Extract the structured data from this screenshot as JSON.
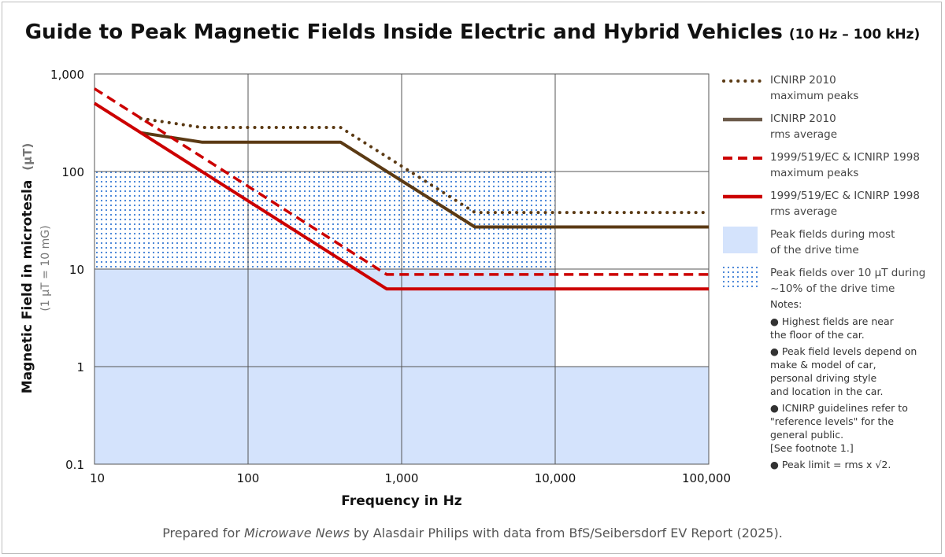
{
  "title": "Guide to Peak Magnetic Fields Inside Electric and Hybrid Vehicles",
  "title_range": "(10 Hz – 100 kHz)",
  "footer": {
    "pre": "Prepared for ",
    "publication": "Microwave News",
    "post": " by Alasdair Philips with data from BfS/Seibersdorf EV Report (2025)."
  },
  "legend": [
    {
      "line1": "ICNIRP 2010",
      "line2": "maximum peaks"
    },
    {
      "line1": "ICNIRP 2010",
      "line2": "rms average"
    },
    {
      "line1": "1999/519/EC & ICNIRP 1998",
      "line2": "maximum peaks"
    },
    {
      "line1": "1999/519/EC & ICNIRP 1998",
      "line2": "rms average"
    },
    {
      "line1": "Peak fields during most",
      "line2": "of the drive time"
    },
    {
      "line1": "Peak fields over 10 µT during",
      "line2": "~10% of the drive time"
    }
  ],
  "notes": {
    "heading": "Notes:",
    "n1a": "● Highest fields are near",
    "n1b": "the floor of the car.",
    "n2a": "● Peak field levels depend on",
    "n2b": "make & model of car,",
    "n2c": "personal driving style",
    "n2d": "and location in the car.",
    "n3a": "● ICNIRP guidelines refer to",
    "n3b": "\"reference levels\" for the",
    "n3c": "general public.",
    "n3d": "[See footnote 1.]",
    "n4": "● Peak limit = rms x √2."
  },
  "colors": {
    "icnirp2010": "#5b3a14",
    "ec1998": "#cc0000",
    "fill": "#d4e3fc",
    "dots": "#3a7bd5",
    "grid": "#555555"
  },
  "chart_data": {
    "type": "line",
    "xscale": "log",
    "yscale": "log",
    "xlim": [
      10,
      100000
    ],
    "ylim": [
      0.1,
      1000
    ],
    "xlabel": "Frequency in Hz",
    "ylabel": "Magnetic Field in microtesla",
    "ylabel_unit": "(µT)",
    "ylabel_sub": "(1 µT = 10 mG)",
    "grid": true,
    "legend_position": "right",
    "xticks": [
      {
        "v": 10,
        "label": "10"
      },
      {
        "v": 100,
        "label": "100"
      },
      {
        "v": 1000,
        "label": "1,000"
      },
      {
        "v": 10000,
        "label": "10,000"
      },
      {
        "v": 100000,
        "label": "100,000"
      }
    ],
    "yticks": [
      {
        "v": 0.1,
        "label": "0.1"
      },
      {
        "v": 1,
        "label": "1"
      },
      {
        "v": 10,
        "label": "10"
      },
      {
        "v": 100,
        "label": "100"
      },
      {
        "v": 1000,
        "label": "1,000"
      }
    ],
    "series": [
      {
        "key": "icnirp2010_peak",
        "style": "dotted",
        "color": "#5b3a14",
        "points": [
          [
            20,
            350
          ],
          [
            50,
            283
          ],
          [
            400,
            283
          ],
          [
            3000,
            38
          ],
          [
            100000,
            38
          ]
        ]
      },
      {
        "key": "icnirp2010_rms",
        "style": "solid",
        "color": "#5b3a14",
        "points": [
          [
            20,
            250
          ],
          [
            50,
            200
          ],
          [
            400,
            200
          ],
          [
            3000,
            27
          ],
          [
            100000,
            27
          ]
        ]
      },
      {
        "key": "ec1998_peak",
        "style": "dashed",
        "color": "#cc0000",
        "points": [
          [
            10,
            707
          ],
          [
            800,
            8.8
          ],
          [
            100000,
            8.8
          ]
        ]
      },
      {
        "key": "ec1998_rms",
        "style": "solid",
        "color": "#cc0000",
        "points": [
          [
            10,
            500
          ],
          [
            800,
            6.25
          ],
          [
            100000,
            6.25
          ]
        ]
      }
    ],
    "regions": [
      {
        "key": "most_time",
        "type": "fill",
        "polygon": [
          [
            10,
            0.1
          ],
          [
            10,
            10
          ],
          [
            10000,
            10
          ],
          [
            10000,
            1
          ],
          [
            100000,
            1
          ],
          [
            100000,
            0.1
          ]
        ]
      },
      {
        "key": "ten_percent",
        "type": "dots",
        "x": [
          10,
          10000
        ],
        "y": [
          10,
          100
        ]
      }
    ]
  }
}
